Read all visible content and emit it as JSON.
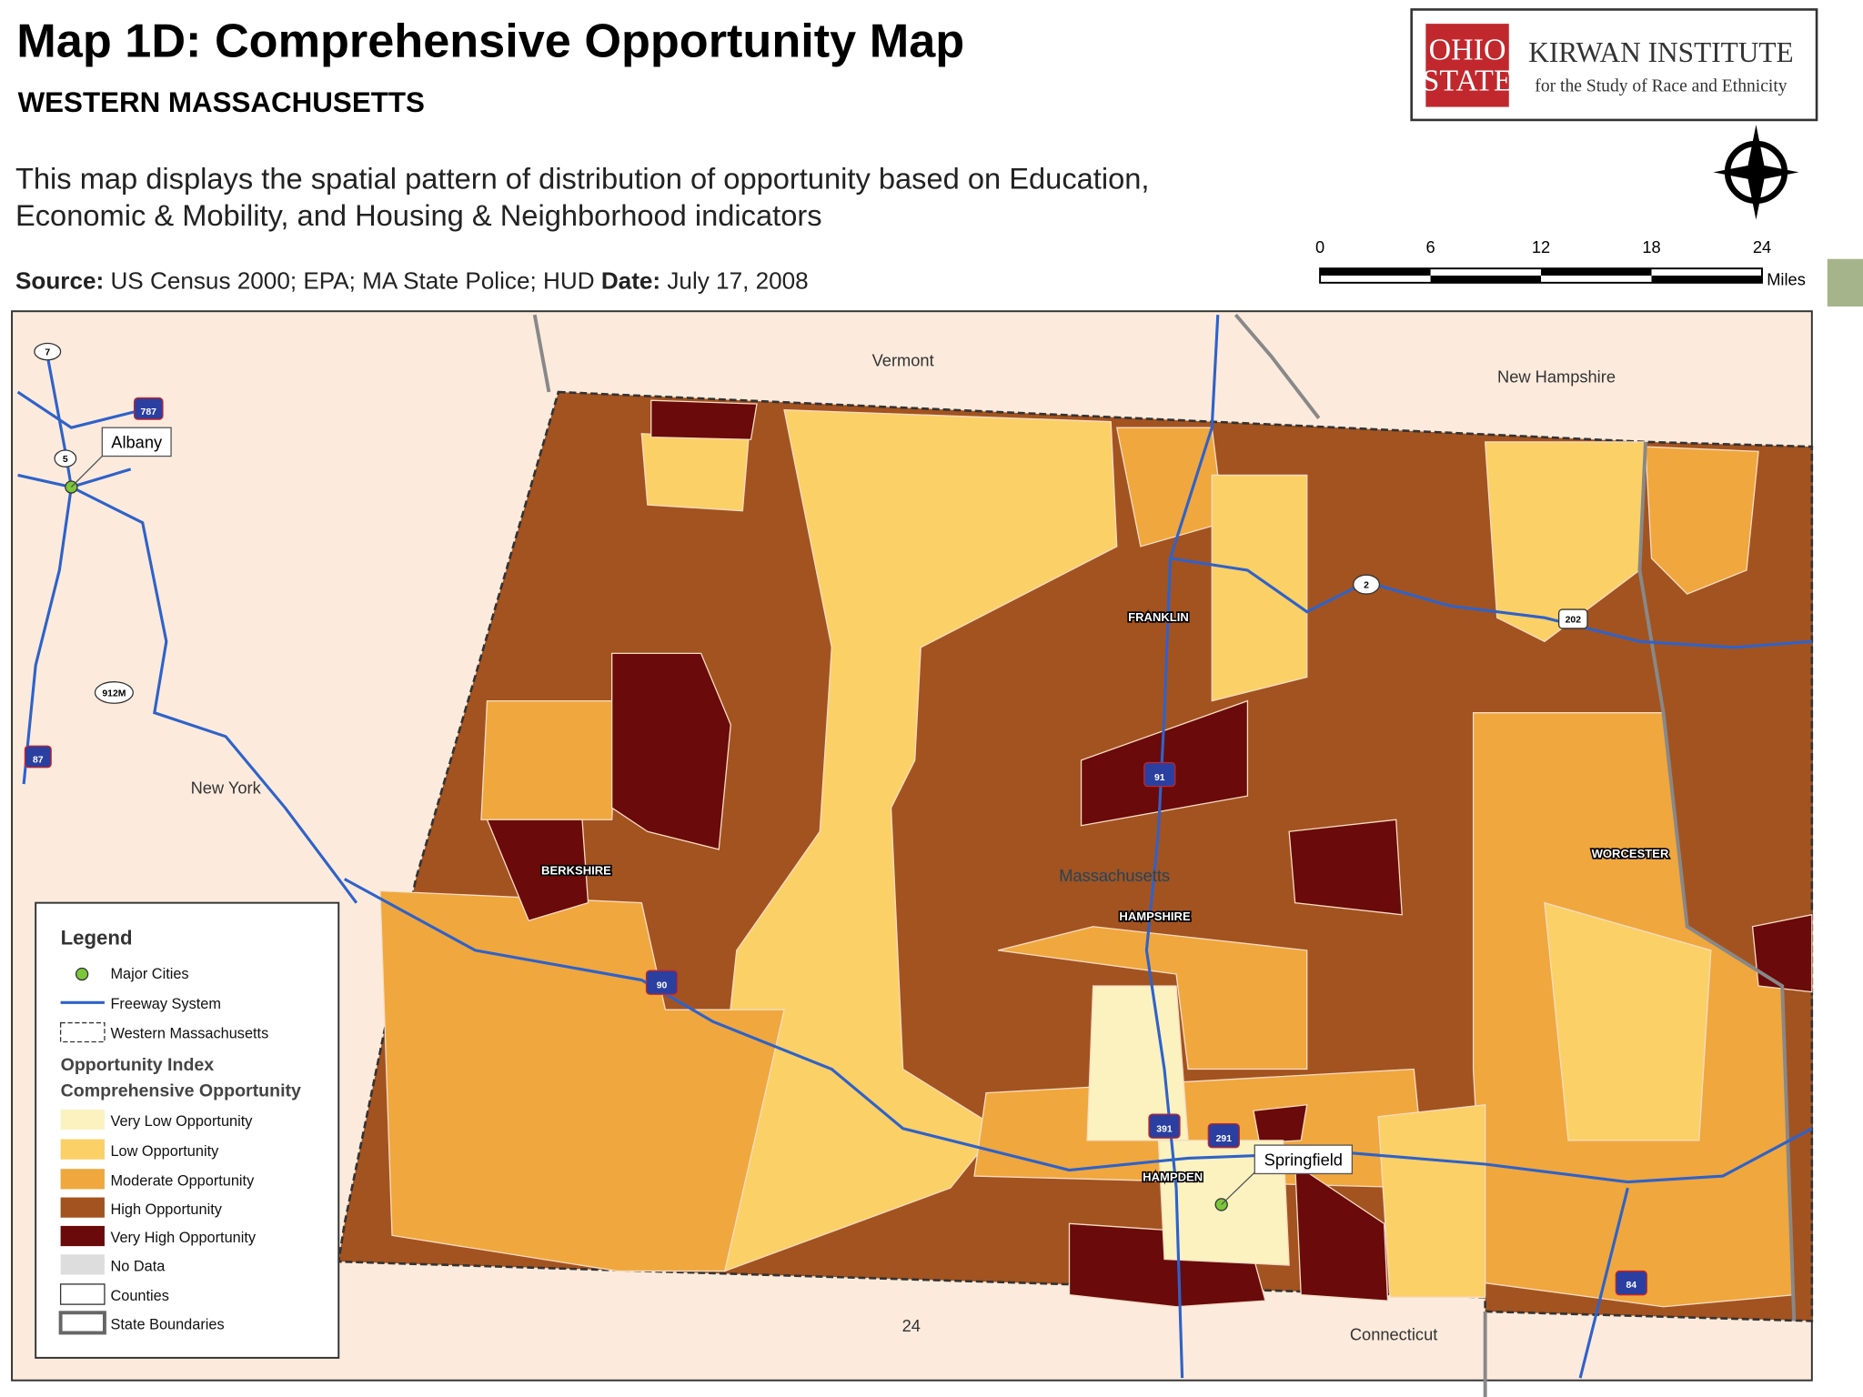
{
  "header": {
    "title": "Map 1D: Comprehensive Opportunity Map",
    "subtitle": "WESTERN MASSACHUSETTS",
    "description": [
      "This map displays the spatial pattern of distribution of opportunity based on Education,",
      "Economic & Mobility, and Housing & Neighborhood indicators"
    ],
    "source_label": "Source:",
    "source": "US Census 2000; EPA; MA State Police; HUD",
    "date_label": "Date:",
    "date": "July 17, 2008"
  },
  "logo": {
    "university": [
      "OHIO",
      "STATE"
    ],
    "institute": "KIRWAN INSTITUTE",
    "tagline": "for the Study of Race and Ethnicity"
  },
  "scale_bar": {
    "ticks": [
      "0",
      "6",
      "12",
      "18",
      "24"
    ],
    "unit": "Miles"
  },
  "map": {
    "regions": [
      "Vermont",
      "New Hampshire",
      "New York",
      "Massachusetts",
      "Connecticut"
    ],
    "counties": [
      "FRANKLIN",
      "BERKSHIRE",
      "HAMPSHIRE",
      "HAMPDEN",
      "WORCESTER"
    ],
    "cities": [
      "Albany",
      "Springfield"
    ],
    "routes": [
      "7",
      "787",
      "5",
      "912M",
      "87",
      "90",
      "91",
      "391",
      "291",
      "2",
      "202",
      "84",
      "24"
    ]
  },
  "legend": {
    "title": "Legend",
    "items": [
      "Major Cities",
      "Freeway System",
      "Western Massachusetts"
    ],
    "index_title": "Opportunity Index",
    "index_subtitle": "Comprehensive Opportunity",
    "classes": [
      "Very Low Opportunity",
      "Low Opportunity",
      "Moderate Opportunity",
      "High Opportunity",
      "Very High Opportunity",
      "No Data",
      "Counties",
      "State Boundaries"
    ]
  }
}
